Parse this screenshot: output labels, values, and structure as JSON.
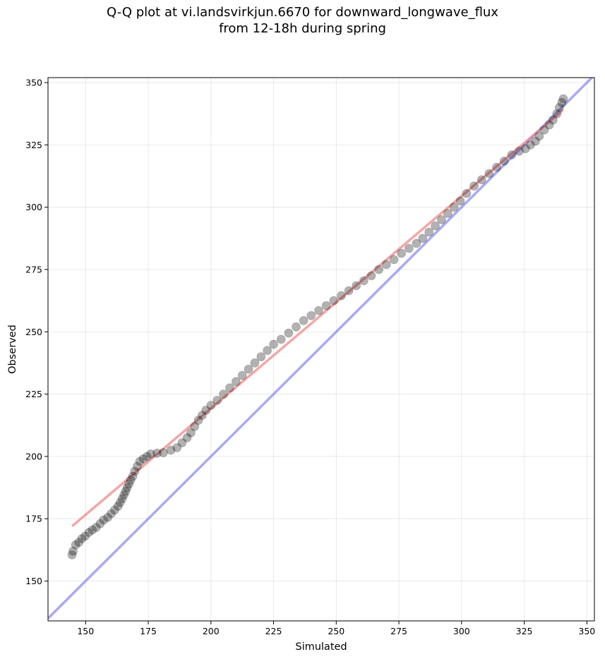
{
  "chart_data": {
    "type": "scatter",
    "title_lines": [
      "Q-Q plot at vi.landsvirkjun.6670 for downward_longwave_flux",
      "from 12-18h during spring"
    ],
    "xlabel": "Simulated",
    "ylabel": "Observed",
    "xlim": [
      135,
      353
    ],
    "ylim": [
      134,
      352
    ],
    "xticks": [
      150,
      175,
      200,
      225,
      250,
      275,
      300,
      325,
      350
    ],
    "yticks": [
      150,
      175,
      200,
      225,
      250,
      275,
      300,
      325,
      350
    ],
    "grid": true,
    "series": [
      {
        "kind": "quantile-points",
        "color": "#000000",
        "points": [
          [
            144.6,
            160.5
          ],
          [
            145.0,
            162.0
          ],
          [
            146.0,
            164.5
          ],
          [
            147.3,
            165.5
          ],
          [
            148.5,
            167.0
          ],
          [
            149.8,
            168.0
          ],
          [
            151.3,
            169.5
          ],
          [
            152.7,
            170.5
          ],
          [
            154.2,
            171.5
          ],
          [
            155.8,
            173.0
          ],
          [
            157.2,
            174.5
          ],
          [
            158.8,
            175.5
          ],
          [
            160.2,
            177.0
          ],
          [
            161.6,
            178.5
          ],
          [
            162.9,
            180.0
          ],
          [
            163.8,
            181.5
          ],
          [
            164.6,
            183.0
          ],
          [
            165.3,
            184.5
          ],
          [
            166.0,
            186.0
          ],
          [
            166.6,
            187.5
          ],
          [
            167.3,
            189.0
          ],
          [
            168.0,
            190.5
          ],
          [
            168.8,
            192.0
          ],
          [
            169.6,
            194.0
          ],
          [
            170.6,
            196.0
          ],
          [
            171.6,
            198.0
          ],
          [
            173.0,
            199.0
          ],
          [
            174.5,
            200.0
          ],
          [
            176.0,
            201.0
          ],
          [
            178.5,
            201.3
          ],
          [
            181.0,
            201.5
          ],
          [
            184.0,
            202.5
          ],
          [
            186.5,
            203.5
          ],
          [
            188.5,
            205.5
          ],
          [
            190.5,
            207.5
          ],
          [
            192.0,
            209.5
          ],
          [
            193.5,
            212.0
          ],
          [
            195.0,
            214.5
          ],
          [
            196.5,
            216.5
          ],
          [
            198.0,
            218.5
          ],
          [
            200.0,
            220.5
          ],
          [
            202.5,
            222.5
          ],
          [
            205.0,
            225.0
          ],
          [
            207.5,
            227.5
          ],
          [
            210.0,
            230.0
          ],
          [
            212.5,
            232.5
          ],
          [
            215.0,
            235.0
          ],
          [
            217.5,
            237.5
          ],
          [
            220.0,
            240.0
          ],
          [
            222.5,
            242.5
          ],
          [
            225.0,
            245.0
          ],
          [
            228.0,
            247.0
          ],
          [
            231.0,
            249.5
          ],
          [
            234.0,
            252.0
          ],
          [
            237.0,
            254.5
          ],
          [
            240.0,
            256.5
          ],
          [
            243.0,
            258.5
          ],
          [
            246.0,
            260.5
          ],
          [
            249.0,
            262.5
          ],
          [
            252.0,
            264.5
          ],
          [
            255.0,
            266.5
          ],
          [
            258.0,
            268.5
          ],
          [
            261.0,
            270.5
          ],
          [
            264.0,
            272.5
          ],
          [
            267.0,
            275.0
          ],
          [
            270.0,
            277.0
          ],
          [
            273.0,
            279.0
          ],
          [
            276.0,
            281.5
          ],
          [
            279.0,
            283.5
          ],
          [
            282.0,
            285.5
          ],
          [
            284.5,
            287.5
          ],
          [
            287.0,
            290.0
          ],
          [
            289.5,
            292.5
          ],
          [
            292.0,
            295.0
          ],
          [
            294.5,
            297.5
          ],
          [
            297.0,
            300.0
          ],
          [
            299.5,
            302.5
          ],
          [
            302.0,
            305.5
          ],
          [
            305.0,
            308.5
          ],
          [
            308.0,
            311.0
          ],
          [
            311.0,
            313.5
          ],
          [
            314.0,
            316.0
          ],
          [
            317.0,
            318.5
          ],
          [
            320.0,
            321.0
          ],
          [
            323.0,
            322.5
          ],
          [
            325.5,
            323.5
          ],
          [
            327.5,
            325.0
          ],
          [
            329.5,
            326.5
          ],
          [
            331.0,
            328.5
          ],
          [
            333.0,
            331.0
          ],
          [
            335.0,
            333.0
          ],
          [
            336.5,
            335.0
          ],
          [
            338.0,
            337.5
          ],
          [
            339.0,
            340.0
          ],
          [
            340.0,
            342.0
          ],
          [
            340.6,
            343.5
          ]
        ]
      },
      {
        "kind": "fit-line",
        "color": "#f08080",
        "from": [
          144.6,
          172.0
        ],
        "to": [
          340.5,
          339.0
        ]
      },
      {
        "kind": "identity-line",
        "color": "#7b7bf0",
        "from": [
          135,
          135
        ],
        "to": [
          353,
          353
        ]
      }
    ]
  }
}
